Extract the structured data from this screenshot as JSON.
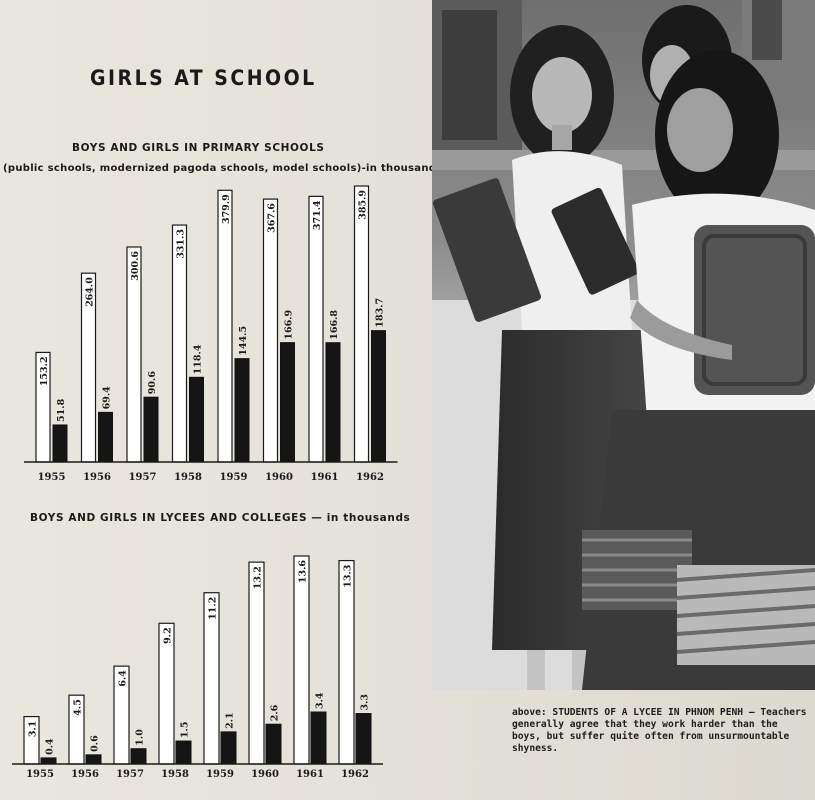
{
  "page": {
    "title": "GIRLS AT SCHOOL"
  },
  "charts": {
    "primary": {
      "title": "BOYS AND GIRLS IN PRIMARY SCHOOLS",
      "subtitle": "(public schools, modernized pagoda schools, model schools)-in thousands"
    },
    "lycees": {
      "title": "BOYS AND GIRLS IN LYCEES AND COLLEGES — in thousands"
    }
  },
  "chart_data": [
    {
      "type": "bar",
      "title": "BOYS AND GIRLS IN PRIMARY SCHOOLS",
      "subtitle": "(public schools, modernized pagoda schools, model schools)-in thousands",
      "categories": [
        "1955",
        "1956",
        "1957",
        "1958",
        "1959",
        "1960",
        "1961",
        "1962"
      ],
      "series": [
        {
          "values": [
            153.2,
            264.0,
            300.6,
            331.3,
            379.9,
            367.6,
            371.4,
            385.9
          ],
          "labels": [
            "153.2",
            "264.0",
            "300.6",
            "331.3",
            "379.9",
            "367.6",
            "371.4",
            "385.9"
          ],
          "color": "#ffffff"
        },
        {
          "values": [
            51.8,
            69.4,
            90.6,
            118.4,
            144.5,
            166.9,
            166.8,
            183.7
          ],
          "labels": [
            "51.8",
            "69.4",
            "90.6",
            "118.4",
            "144.5",
            "166.9",
            "166.8",
            "183.7"
          ],
          "color": "#151515"
        }
      ],
      "ylim": [
        0,
        385.9
      ],
      "grid": false
    },
    {
      "type": "bar",
      "title": "BOYS AND GIRLS IN LYCEES AND COLLEGES — in thousands",
      "categories": [
        "1955",
        "1956",
        "1957",
        "1958",
        "1959",
        "1960",
        "1961",
        "1962"
      ],
      "series": [
        {
          "values": [
            3.1,
            4.5,
            6.4,
            9.2,
            11.2,
            13.2,
            13.6,
            13.3
          ],
          "labels": [
            "3.1",
            "4.5",
            "6.4",
            "9.2",
            "11.2",
            "13.2",
            "13.6",
            "13.3"
          ],
          "color": "#ffffff"
        },
        {
          "values": [
            0.4,
            0.6,
            1.0,
            1.5,
            2.1,
            2.6,
            3.4,
            3.3
          ],
          "labels": [
            "0.4",
            "0.6",
            "1.0",
            "1.5",
            "2.1",
            "2.6",
            "3.4",
            "3.3"
          ],
          "color": "#151515"
        }
      ],
      "ylim": [
        0,
        13.6
      ],
      "grid": false
    }
  ],
  "photo": {
    "caption": "above: STUDENTS OF A LYCEE IN PHNOM PENH — Teachers generally agree that they work harder than the boys, but suffer quite often from unsurmountable shyness."
  }
}
